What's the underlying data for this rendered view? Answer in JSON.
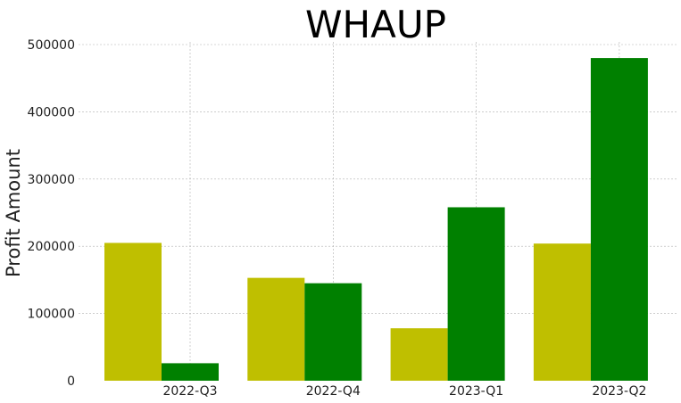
{
  "chart_data": {
    "type": "bar",
    "title": "WHAUP",
    "xlabel": "",
    "ylabel": "Profit Amount",
    "categories": [
      "2022-Q3",
      "2022-Q4",
      "2023-Q1",
      "2023-Q2"
    ],
    "series": [
      {
        "color": "#bfbf00",
        "values": [
          205000,
          153000,
          78000,
          204000
        ]
      },
      {
        "color": "#008000",
        "values": [
          26000,
          145000,
          258000,
          480000
        ]
      }
    ],
    "ylim": [
      0,
      500000
    ],
    "yticks": [
      "0",
      "100000",
      "200000",
      "300000",
      "400000",
      "500000"
    ],
    "grid": true,
    "legend": "none"
  }
}
